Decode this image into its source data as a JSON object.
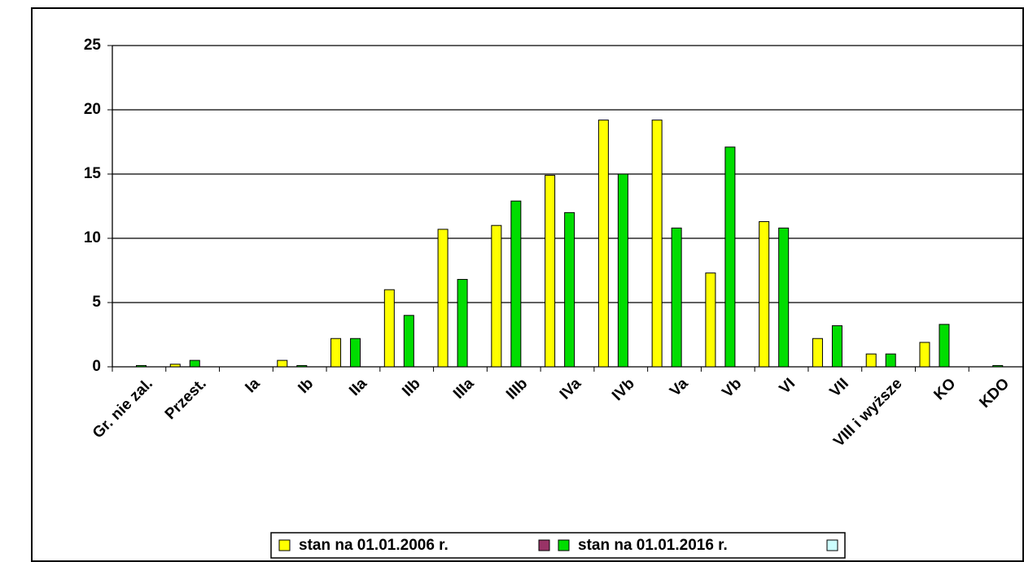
{
  "chart_data": {
    "type": "bar",
    "categories": [
      "Gr. nie zal.",
      "Przest.",
      "Ia",
      "Ib",
      "IIa",
      "IIb",
      "IIIa",
      "IIIb",
      "IVa",
      "IVb",
      "Va",
      "Vb",
      "VI",
      "VII",
      "VIII i wyższe",
      "KO",
      "KDO"
    ],
    "series": [
      {
        "name": "stan na 01.01.2006 r.",
        "color": "#ffff00",
        "values": [
          0,
          0.2,
          0,
          0.5,
          2.2,
          6,
          10.7,
          11,
          14.9,
          19.2,
          19.2,
          7.3,
          11.3,
          2.2,
          1.0,
          1.9,
          0
        ]
      },
      {
        "name": "stan na 01.01.2016 r.",
        "color": "#00dd00",
        "values": [
          0.1,
          0.5,
          0,
          0.1,
          2.2,
          4,
          6.8,
          12.9,
          12,
          15,
          10.8,
          17.1,
          10.8,
          3.2,
          1.0,
          3.3,
          0.1
        ]
      }
    ],
    "ylim": [
      0,
      25
    ],
    "yticks": [
      0,
      5,
      10,
      15,
      20,
      25
    ],
    "grid": true
  }
}
